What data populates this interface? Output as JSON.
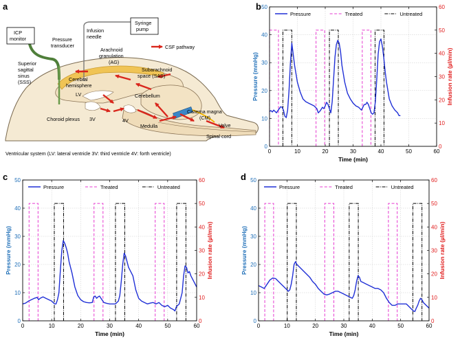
{
  "diagram": {
    "panel": "a",
    "caption": "Ventricular system (LV: lateral ventricle 3V: third ventricle 4V: forth ventricle)",
    "legend": "CSF pathway",
    "colors": {
      "brain": "#f3e3c4",
      "sinus": "#f0c455",
      "arrow": "#d9261c",
      "tube": "#4f7f3a",
      "valve": "#3a86c7"
    },
    "labels": {
      "icp": [
        "ICP",
        "monitor"
      ],
      "pressure_transducer": [
        "Pressure",
        "transducer"
      ],
      "infusion_needle": [
        "Infusion",
        "needle"
      ],
      "syringe_pump": [
        "Syringe",
        "pump"
      ],
      "arachnoid": [
        "Arachnoid",
        "granulation",
        "(AG)"
      ],
      "sss": [
        "Superior",
        "sagittal",
        "sinus",
        "(SSS)"
      ],
      "cerebral": [
        "Cerebral",
        "hemisphere"
      ],
      "sas": [
        "Subarachnoid",
        "space (SAS)"
      ],
      "lv": "LV",
      "cerebellum": "Cerebellum",
      "cm": [
        "Cisterna magna",
        "(CM)"
      ],
      "choroid": "Choroid plexus",
      "v3": "3V",
      "v4": "4V",
      "medulla": "Medulla",
      "valve": "Valve",
      "spinal": "Spinal cord"
    }
  },
  "chart_data": [
    {
      "panel": "b",
      "type": "line",
      "xlabel": "Time (min)",
      "ylabel": "Pressure (mmHg)",
      "y2label": "Infusion rate (µl/min)",
      "xlim": [
        0,
        60
      ],
      "ylim": [
        0,
        50
      ],
      "y2lim": [
        0,
        60
      ],
      "xticks": [
        0,
        10,
        20,
        30,
        40,
        50,
        60
      ],
      "yticks": [
        0,
        10,
        20,
        30,
        40,
        50
      ],
      "y2ticks": [
        0,
        10,
        20,
        30,
        40,
        50,
        60
      ],
      "grid": true,
      "legend": [
        "Pressure",
        "Treated",
        "Untreated"
      ],
      "legend_position": "top",
      "colors": {
        "pressure": "#1f2fd6",
        "treated": "#e639d0",
        "untreated": "#000000",
        "left_axis": "#1f6fb8",
        "right_axis": "#e01b1b"
      },
      "pressure": {
        "x": [
          0,
          0.5,
          1,
          1.5,
          2,
          2.5,
          3,
          3.5,
          4,
          4.5,
          5,
          5.5,
          6,
          6.5,
          7,
          7.5,
          8,
          8.5,
          9,
          9.5,
          10,
          11,
          12,
          13,
          14,
          15,
          16,
          17,
          17.5,
          18,
          18.5,
          19,
          19.5,
          20,
          20.5,
          21,
          21.5,
          22,
          22.5,
          23,
          23.5,
          24,
          24.5,
          25,
          25.5,
          26,
          26.5,
          27,
          28,
          29,
          30,
          31,
          32,
          32.5,
          33,
          33.5,
          34,
          34.5,
          35,
          35.5,
          36,
          36.5,
          37,
          37.5,
          38,
          38.5,
          39,
          39.5,
          40,
          40.5,
          41,
          41.5,
          42,
          42.5,
          43,
          44,
          45,
          46,
          46.5,
          47
        ],
        "y": [
          12.5,
          12.8,
          12.3,
          13.0,
          12.5,
          12.0,
          12.8,
          13.5,
          14.2,
          14.0,
          13.0,
          10.8,
          10.3,
          13.0,
          20.0,
          30.0,
          37.0,
          33.0,
          29.0,
          26.0,
          23.0,
          19.5,
          17.0,
          16.0,
          15.5,
          15.0,
          14.5,
          13.5,
          12.0,
          12.5,
          13.2,
          14.0,
          13.5,
          14.5,
          15.8,
          15.0,
          13.5,
          12.0,
          16.0,
          24.0,
          32.0,
          36.5,
          38.0,
          37.0,
          34.0,
          29.0,
          26.0,
          23.0,
          19.0,
          17.0,
          15.5,
          14.5,
          14.0,
          13.5,
          13.0,
          14.0,
          15.0,
          15.0,
          15.8,
          15.0,
          13.5,
          12.0,
          11.5,
          12.0,
          16.0,
          24.0,
          33.0,
          37.5,
          38.5,
          36.0,
          32.0,
          27.0,
          23.0,
          20.0,
          17.0,
          14.5,
          13.0,
          12.0,
          11.0,
          11.0
        ]
      },
      "treated_pulses": [
        [
          0,
          3.2
        ],
        [
          16.7,
          19.8
        ],
        [
          33.3,
          36.4
        ]
      ],
      "untreated_pulses": [
        [
          4.8,
          8.0
        ],
        [
          21.5,
          24.7
        ],
        [
          37.9,
          41.1
        ]
      ],
      "pulse_height": 50
    },
    {
      "panel": "c",
      "type": "line",
      "xlabel": "Time (min)",
      "ylabel": "Pressure (mmHg)",
      "y2label": "Infusion rate (µl/min)",
      "xlim": [
        0,
        60
      ],
      "ylim": [
        0,
        50
      ],
      "y2lim": [
        0,
        60
      ],
      "xticks": [
        0,
        10,
        20,
        30,
        40,
        50,
        60
      ],
      "yticks": [
        0,
        10,
        20,
        30,
        40,
        50
      ],
      "y2ticks": [
        0,
        10,
        20,
        30,
        40,
        50,
        60
      ],
      "grid": true,
      "legend": [
        "Pressure",
        "Treated",
        "Untreated"
      ],
      "legend_position": "top",
      "colors": {
        "pressure": "#1f2fd6",
        "treated": "#e639d0",
        "untreated": "#000000",
        "left_axis": "#1f6fb8",
        "right_axis": "#e01b1b"
      },
      "pressure": {
        "x": [
          0,
          1,
          2,
          3,
          4,
          5,
          5.5,
          6,
          7,
          8,
          9,
          10,
          10.5,
          11,
          11.5,
          12,
          12.5,
          13,
          13.5,
          14,
          14.5,
          15,
          15.5,
          16,
          17,
          18,
          19,
          20,
          21,
          22,
          23,
          24,
          24.5,
          25,
          25.5,
          26,
          26.5,
          27,
          28,
          29,
          30,
          31,
          32,
          33,
          33.5,
          34,
          34.5,
          35,
          35.5,
          36,
          36.5,
          37,
          38,
          39,
          40,
          41,
          42,
          43,
          44,
          45,
          46,
          47,
          48,
          49,
          50,
          51,
          52,
          52.5,
          53,
          54,
          55,
          55.5,
          56,
          56.5,
          57,
          57.5,
          58,
          59,
          60
        ],
        "y": [
          6.0,
          6.3,
          7.0,
          7.5,
          8.0,
          8.3,
          7.5,
          8.0,
          8.5,
          8.0,
          7.5,
          7.0,
          6.5,
          6.0,
          6.0,
          7.5,
          10.0,
          18.0,
          25.0,
          28.5,
          27.5,
          26.0,
          24.0,
          21.0,
          17.0,
          12.0,
          9.0,
          7.5,
          6.8,
          6.5,
          6.4,
          6.5,
          8.5,
          8.8,
          8.0,
          8.5,
          8.8,
          8.0,
          6.5,
          6.2,
          6.0,
          6.0,
          6.0,
          7.0,
          9.0,
          14.0,
          20.0,
          24.0,
          23.0,
          21.0,
          19.0,
          18.0,
          16.0,
          11.0,
          8.0,
          7.0,
          6.5,
          6.0,
          6.3,
          6.5,
          6.0,
          6.5,
          5.5,
          5.0,
          5.5,
          4.5,
          4.0,
          3.5,
          5.0,
          6.0,
          10.0,
          16.0,
          19.5,
          19.0,
          17.0,
          17.5,
          16.0,
          14.0,
          12.0
        ]
      },
      "treated_pulses": [
        [
          2.2,
          5.3
        ],
        [
          24.6,
          27.7
        ],
        [
          45.7,
          48.8
        ]
      ],
      "untreated_pulses": [
        [
          10.9,
          14.1
        ],
        [
          32.0,
          35.2
        ],
        [
          53.1,
          56.3
        ]
      ],
      "pulse_height": 50
    },
    {
      "panel": "d",
      "type": "line",
      "xlabel": "Time (min)",
      "ylabel": "Pressure (mmHg)",
      "y2label": "Infusion rate (µl/min)",
      "xlim": [
        0,
        60
      ],
      "ylim": [
        0,
        50
      ],
      "y2lim": [
        0,
        60
      ],
      "xticks": [
        0,
        10,
        20,
        30,
        40,
        50,
        60
      ],
      "yticks": [
        0,
        10,
        20,
        30,
        40,
        50
      ],
      "y2ticks": [
        0,
        10,
        20,
        30,
        40,
        50,
        60
      ],
      "grid": true,
      "legend": [
        "Pressure",
        "Treated",
        "Untreated"
      ],
      "legend_position": "top",
      "colors": {
        "pressure": "#1f2fd6",
        "treated": "#e639d0",
        "untreated": "#000000",
        "left_axis": "#1f6fb8",
        "right_axis": "#e01b1b"
      },
      "pressure": {
        "x": [
          0,
          1,
          2,
          3,
          4,
          5,
          6,
          7,
          8,
          9,
          10,
          10.5,
          11,
          11.5,
          12,
          12.5,
          13,
          13.5,
          14,
          15,
          16,
          17,
          18,
          19,
          20,
          21,
          22,
          23,
          24,
          25,
          26,
          27,
          28,
          29,
          30,
          31,
          32,
          33,
          33.5,
          34,
          34.5,
          35,
          35.5,
          36,
          37,
          38,
          39,
          40,
          41,
          42,
          43,
          44,
          45,
          46,
          47,
          48,
          49,
          50,
          51,
          52,
          53,
          54,
          54.5,
          55,
          55.5,
          56,
          56.5,
          57,
          57.5,
          58,
          59,
          60
        ],
        "y": [
          12.5,
          12.0,
          11.5,
          13.0,
          14.5,
          15.2,
          15.0,
          14.0,
          13.0,
          12.0,
          11.0,
          10.5,
          11.0,
          13.0,
          16.0,
          20.0,
          21.0,
          20.0,
          19.5,
          18.5,
          17.5,
          16.5,
          15.5,
          14.0,
          13.0,
          11.5,
          10.5,
          9.5,
          9.2,
          9.5,
          10.0,
          10.5,
          10.5,
          10.0,
          9.5,
          9.0,
          8.5,
          8.0,
          9.0,
          11.0,
          14.0,
          16.0,
          15.5,
          14.0,
          13.5,
          13.0,
          12.5,
          12.0,
          11.5,
          11.5,
          11.0,
          10.0,
          8.0,
          6.5,
          5.5,
          5.5,
          6.0,
          6.0,
          6.0,
          6.0,
          5.0,
          4.0,
          3.5,
          3.3,
          4.5,
          5.5,
          7.0,
          8.0,
          7.5,
          6.5,
          5.5,
          4.5
        ]
      },
      "treated_pulses": [
        [
          2.2,
          5.3
        ],
        [
          23.3,
          26.5
        ],
        [
          45.7,
          48.8
        ]
      ],
      "untreated_pulses": [
        [
          10.1,
          13.3
        ],
        [
          31.9,
          35.1
        ],
        [
          54.3,
          57.5
        ]
      ],
      "pulse_height": 50
    }
  ]
}
